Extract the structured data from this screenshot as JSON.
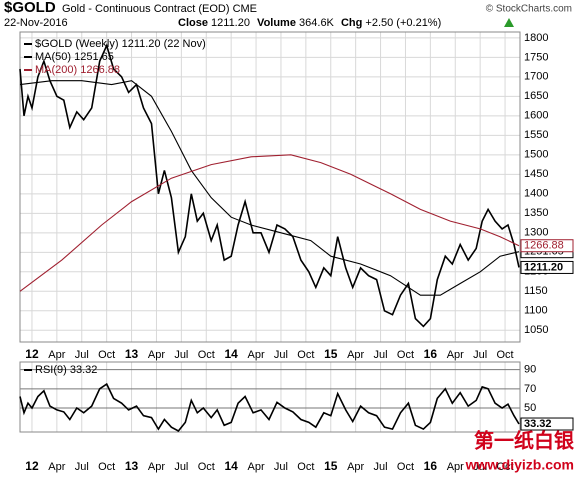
{
  "header": {
    "symbol": "$GOLD",
    "name": "Gold - Continuous Contract (EOD) CME",
    "source": "© StockCharts.com",
    "date": "22-Nov-2016",
    "stats": [
      [
        "Close",
        "1211.20"
      ],
      [
        "Volume",
        "364.6K"
      ],
      [
        "Chg",
        "+2.50 (+0.21%)"
      ]
    ]
  },
  "chart_data": [
    {
      "type": "line",
      "xlim": [
        2011.88,
        2016.9
      ],
      "ylim": [
        1020,
        1815
      ],
      "yticks": [
        1050,
        1100,
        1150,
        1200,
        1250,
        1300,
        1350,
        1400,
        1450,
        1500,
        1550,
        1600,
        1650,
        1700,
        1750,
        1800
      ],
      "xticks": [
        {
          "value": 2012,
          "label": "12"
        },
        {
          "value": 2012.25,
          "label": "Apr"
        },
        {
          "value": 2012.5,
          "label": "Jul"
        },
        {
          "value": 2012.75,
          "label": "Oct"
        },
        {
          "value": 2013,
          "label": "13"
        },
        {
          "value": 2013.25,
          "label": "Apr"
        },
        {
          "value": 2013.5,
          "label": "Jul"
        },
        {
          "value": 2013.75,
          "label": "Oct"
        },
        {
          "value": 2014,
          "label": "14"
        },
        {
          "value": 2014.25,
          "label": "Apr"
        },
        {
          "value": 2014.5,
          "label": "Jul"
        },
        {
          "value": 2014.75,
          "label": "Oct"
        },
        {
          "value": 2015,
          "label": "15"
        },
        {
          "value": 2015.25,
          "label": "Apr"
        },
        {
          "value": 2015.5,
          "label": "Jul"
        },
        {
          "value": 2015.75,
          "label": "Oct"
        },
        {
          "value": 2016,
          "label": "16"
        },
        {
          "value": 2016.25,
          "label": "Apr"
        },
        {
          "value": 2016.5,
          "label": "Jul"
        },
        {
          "value": 2016.75,
          "label": "Oct"
        }
      ],
      "grid": true,
      "series": [
        {
          "name": "$GOLD (Weekly) 1211.20 (22 Nov)",
          "color": "#000000",
          "label": "1211.20",
          "x": [
            2011.88,
            2011.92,
            2011.96,
            2012.0,
            2012.06,
            2012.12,
            2012.18,
            2012.25,
            2012.32,
            2012.38,
            2012.45,
            2012.52,
            2012.6,
            2012.68,
            2012.75,
            2012.82,
            2012.9,
            2012.97,
            2013.05,
            2013.12,
            2013.2,
            2013.27,
            2013.33,
            2013.4,
            2013.47,
            2013.54,
            2013.6,
            2013.66,
            2013.72,
            2013.8,
            2013.86,
            2013.93,
            2014.0,
            2014.07,
            2014.14,
            2014.22,
            2014.3,
            2014.38,
            2014.46,
            2014.54,
            2014.62,
            2014.7,
            2014.78,
            2014.85,
            2014.93,
            2015.0,
            2015.07,
            2015.15,
            2015.22,
            2015.3,
            2015.38,
            2015.46,
            2015.54,
            2015.62,
            2015.7,
            2015.78,
            2015.85,
            2015.93,
            2016.0,
            2016.07,
            2016.15,
            2016.22,
            2016.3,
            2016.38,
            2016.46,
            2016.52,
            2016.58,
            2016.65,
            2016.72,
            2016.78,
            2016.84,
            2016.89
          ],
          "values": [
            1720,
            1600,
            1650,
            1620,
            1700,
            1740,
            1690,
            1650,
            1640,
            1570,
            1610,
            1590,
            1620,
            1740,
            1780,
            1720,
            1700,
            1660,
            1680,
            1620,
            1580,
            1400,
            1460,
            1390,
            1250,
            1290,
            1400,
            1330,
            1350,
            1280,
            1320,
            1230,
            1240,
            1320,
            1380,
            1300,
            1300,
            1250,
            1320,
            1310,
            1290,
            1230,
            1200,
            1160,
            1210,
            1190,
            1290,
            1210,
            1160,
            1210,
            1190,
            1180,
            1100,
            1090,
            1140,
            1170,
            1080,
            1060,
            1080,
            1180,
            1240,
            1220,
            1270,
            1230,
            1260,
            1330,
            1360,
            1330,
            1310,
            1320,
            1270,
            1211.2
          ]
        },
        {
          "name": "MA(50) 1251.65",
          "color": "#000000",
          "label": "1251.65",
          "x": [
            2011.88,
            2012.2,
            2012.5,
            2012.8,
            2013.0,
            2013.2,
            2013.4,
            2013.6,
            2013.8,
            2014.0,
            2014.2,
            2014.5,
            2014.8,
            2015.0,
            2015.3,
            2015.6,
            2015.9,
            2016.1,
            2016.3,
            2016.5,
            2016.7,
            2016.89
          ],
          "values": [
            1680,
            1690,
            1690,
            1680,
            1690,
            1650,
            1560,
            1460,
            1390,
            1340,
            1320,
            1300,
            1280,
            1240,
            1220,
            1190,
            1140,
            1140,
            1170,
            1200,
            1240,
            1251.65
          ]
        },
        {
          "name": "MA(200) 1266.88",
          "color": "#a02030",
          "label": "1266.88",
          "x": [
            2011.88,
            2012.3,
            2012.7,
            2013.0,
            2013.4,
            2013.8,
            2014.2,
            2014.6,
            2014.9,
            2015.2,
            2015.6,
            2015.9,
            2016.2,
            2016.5,
            2016.7,
            2016.89
          ],
          "values": [
            1150,
            1230,
            1320,
            1380,
            1440,
            1475,
            1495,
            1500,
            1480,
            1450,
            1400,
            1360,
            1330,
            1310,
            1290,
            1266.88
          ]
        }
      ]
    },
    {
      "type": "line",
      "xlim": [
        2011.88,
        2016.9
      ],
      "ylim": [
        25,
        98
      ],
      "yticks": [
        50,
        70,
        90
      ],
      "grid": true,
      "xticks": [
        {
          "value": 2012,
          "label": "12"
        },
        {
          "value": 2012.25,
          "label": "Apr"
        },
        {
          "value": 2012.5,
          "label": "Jul"
        },
        {
          "value": 2012.75,
          "label": "Oct"
        },
        {
          "value": 2013,
          "label": "13"
        },
        {
          "value": 2013.25,
          "label": "Apr"
        },
        {
          "value": 2013.5,
          "label": "Jul"
        },
        {
          "value": 2013.75,
          "label": "Oct"
        },
        {
          "value": 2014,
          "label": "14"
        },
        {
          "value": 2014.25,
          "label": "Apr"
        },
        {
          "value": 2014.5,
          "label": "Jul"
        },
        {
          "value": 2014.75,
          "label": "Oct"
        },
        {
          "value": 2015,
          "label": "15"
        },
        {
          "value": 2015.25,
          "label": "Apr"
        },
        {
          "value": 2015.5,
          "label": "Jul"
        },
        {
          "value": 2015.75,
          "label": "Oct"
        },
        {
          "value": 2016,
          "label": "16"
        },
        {
          "value": 2016.25,
          "label": "Apr"
        },
        {
          "value": 2016.5,
          "label": "Jul"
        },
        {
          "value": 2016.75,
          "label": "Oct"
        }
      ],
      "series": [
        {
          "name": "RSI(9) 33.32",
          "color": "#000000",
          "label": "33.32",
          "x": [
            2011.88,
            2011.92,
            2011.96,
            2012.0,
            2012.06,
            2012.12,
            2012.18,
            2012.25,
            2012.32,
            2012.38,
            2012.45,
            2012.52,
            2012.6,
            2012.68,
            2012.75,
            2012.82,
            2012.9,
            2012.97,
            2013.05,
            2013.12,
            2013.2,
            2013.27,
            2013.33,
            2013.4,
            2013.47,
            2013.54,
            2013.6,
            2013.66,
            2013.72,
            2013.8,
            2013.86,
            2013.93,
            2014.0,
            2014.07,
            2014.14,
            2014.22,
            2014.3,
            2014.38,
            2014.46,
            2014.54,
            2014.62,
            2014.7,
            2014.78,
            2014.85,
            2014.93,
            2015.0,
            2015.07,
            2015.15,
            2015.22,
            2015.3,
            2015.38,
            2015.46,
            2015.54,
            2015.62,
            2015.7,
            2015.78,
            2015.85,
            2015.93,
            2016.0,
            2016.07,
            2016.15,
            2016.22,
            2016.3,
            2016.38,
            2016.46,
            2016.52,
            2016.58,
            2016.65,
            2016.72,
            2016.78,
            2016.84,
            2016.89
          ],
          "values": [
            62,
            45,
            55,
            50,
            62,
            68,
            52,
            48,
            46,
            38,
            50,
            45,
            52,
            70,
            75,
            60,
            55,
            48,
            52,
            42,
            40,
            28,
            38,
            30,
            26,
            35,
            58,
            45,
            50,
            40,
            48,
            32,
            35,
            55,
            62,
            45,
            48,
            38,
            56,
            50,
            46,
            38,
            35,
            30,
            45,
            42,
            65,
            48,
            36,
            52,
            45,
            42,
            30,
            28,
            45,
            55,
            32,
            28,
            35,
            60,
            70,
            55,
            66,
            52,
            58,
            72,
            70,
            55,
            50,
            54,
            42,
            33.32
          ]
        }
      ]
    }
  ],
  "watermark": {
    "title": "第一纸白银",
    "url": "www.diyizb.com"
  }
}
